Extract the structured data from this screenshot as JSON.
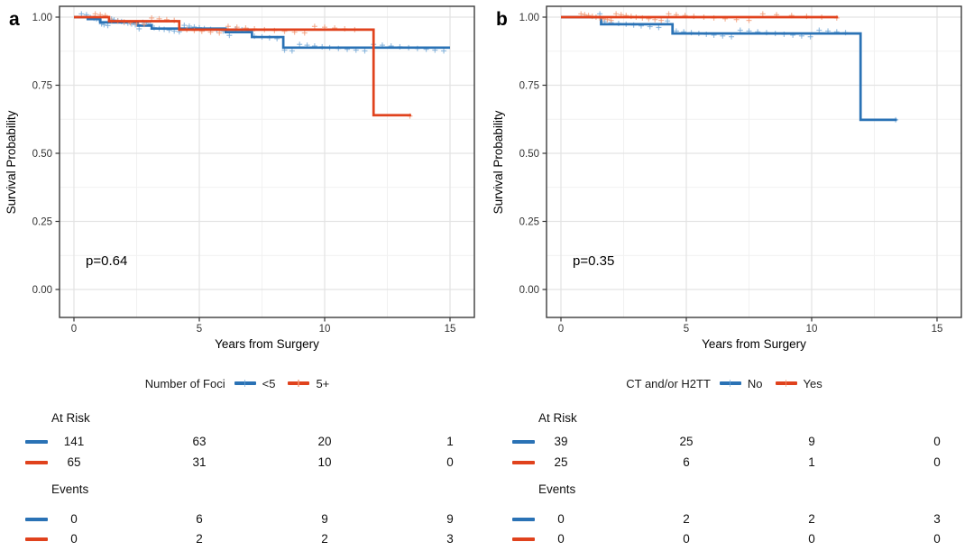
{
  "figure": {
    "background": "#FFFFFF"
  },
  "axes": {
    "x_label": "Years from Surgery",
    "y_label": "Survival Probability",
    "x_tick_labels": [
      "0",
      "5",
      "10",
      "15"
    ],
    "y_tick_labels": [
      "1.00",
      "0.75",
      "0.50",
      "0.25",
      "0.00"
    ]
  },
  "colors": {
    "blue": "#2A72B5",
    "red": "#E0421D",
    "blue_censor": "#74A9D8",
    "red_censor": "#F29B77",
    "grid_major": "#E3E3E3",
    "grid_minor": "#F1F1F1",
    "panel_border": "#3C3C3C"
  },
  "panels": [
    {
      "letter": "a",
      "p_value": "p=0.64",
      "legend": {
        "title": "Number of Foci",
        "entries": [
          {
            "label": "<5",
            "color": "#2A72B5",
            "censor_color": "#74A9D8"
          },
          {
            "label": "5+",
            "color": "#E0421D",
            "censor_color": "#F29B77"
          }
        ]
      },
      "risk_table": {
        "at_risk_label": "At Risk",
        "events_label": "Events",
        "at_risk_rows": [
          {
            "series": "<5",
            "color": "#2A72B5",
            "values": [
              "141",
              "63",
              "20",
              "1"
            ]
          },
          {
            "series": "5+",
            "color": "#E0421D",
            "values": [
              "65",
              "31",
              "10",
              "0"
            ]
          }
        ],
        "events_rows": [
          {
            "series": "<5",
            "color": "#2A72B5",
            "values": [
              "0",
              "6",
              "9",
              "9"
            ]
          },
          {
            "series": "5+",
            "color": "#E0421D",
            "values": [
              "0",
              "2",
              "2",
              "3"
            ]
          }
        ]
      }
    },
    {
      "letter": "b",
      "p_value": "p=0.35",
      "legend": {
        "title": "CT and/or H2TT",
        "entries": [
          {
            "label": "No",
            "color": "#2A72B5",
            "censor_color": "#74A9D8"
          },
          {
            "label": "Yes",
            "color": "#E0421D",
            "censor_color": "#F29B77"
          }
        ]
      },
      "risk_table": {
        "at_risk_label": "At Risk",
        "events_label": "Events",
        "at_risk_rows": [
          {
            "series": "No",
            "color": "#2A72B5",
            "values": [
              "39",
              "25",
              "9",
              "0"
            ]
          },
          {
            "series": "Yes",
            "color": "#E0421D",
            "values": [
              "25",
              "6",
              "1",
              "0"
            ]
          }
        ],
        "events_rows": [
          {
            "series": "No",
            "color": "#2A72B5",
            "values": [
              "0",
              "2",
              "2",
              "3"
            ]
          },
          {
            "series": "Yes",
            "color": "#E0421D",
            "values": [
              "0",
              "0",
              "0",
              "0"
            ]
          }
        ]
      }
    }
  ],
  "chart_data": [
    {
      "type": "line",
      "subtype": "kaplan-meier-step",
      "panel": "a",
      "title": "",
      "xlabel": "Years from Surgery",
      "ylabel": "Survival Probability",
      "xlim": [
        -0.6,
        15.6
      ],
      "ylim": [
        -0.11,
        1.04
      ],
      "x_ticks": [
        0,
        5,
        10,
        15
      ],
      "y_ticks": [
        0.0,
        0.25,
        0.5,
        0.75,
        1.0
      ],
      "grid": true,
      "legend_position": "bottom",
      "p_value_text": "p=0.64",
      "series": [
        {
          "name": "<5",
          "color": "#2A72B5",
          "censor_color": "#74A9D8",
          "start_level": 1.0,
          "drops": [
            [
              0.55,
              0.993
            ],
            [
              1.05,
              0.981
            ],
            [
              2.55,
              0.969
            ],
            [
              3.1,
              0.958
            ],
            [
              6.05,
              0.945
            ],
            [
              7.1,
              0.927
            ],
            [
              8.35,
              0.888
            ]
          ],
          "end_x": 15.0,
          "censor_times": [
            0.3,
            0.5,
            0.65,
            0.8,
            0.9,
            1.0,
            1.1,
            1.2,
            1.35,
            1.5,
            1.6,
            1.75,
            1.9,
            2.0,
            2.15,
            2.3,
            2.45,
            2.6,
            2.75,
            2.9,
            3.05,
            3.2,
            3.4,
            3.6,
            3.8,
            4.0,
            4.2,
            4.4,
            4.6,
            4.8,
            5.0,
            5.2,
            5.45,
            5.7,
            5.95,
            6.2,
            6.45,
            6.7,
            6.95,
            7.2,
            7.5,
            7.8,
            8.1,
            8.4,
            8.7,
            9.0,
            9.3,
            9.6,
            9.9,
            10.2,
            10.55,
            10.9,
            11.25,
            11.6,
            11.95,
            12.3,
            12.65,
            13.0,
            13.35,
            13.7,
            14.05,
            14.4,
            14.75
          ]
        },
        {
          "name": "5+",
          "color": "#E0421D",
          "censor_color": "#F29B77",
          "start_level": 1.0,
          "drops": [
            [
              1.4,
              0.985
            ],
            [
              4.2,
              0.954
            ],
            [
              11.95,
              0.64
            ]
          ],
          "end_x": 13.45,
          "censor_times": [
            0.85,
            1.05,
            1.25,
            1.5,
            1.75,
            2.0,
            2.25,
            2.5,
            2.8,
            3.1,
            3.4,
            3.7,
            4.0,
            4.5,
            4.8,
            5.1,
            5.45,
            5.8,
            6.15,
            6.5,
            6.85,
            7.2,
            7.6,
            8.0,
            8.4,
            8.8,
            9.2,
            9.6,
            10.0,
            10.4,
            10.8,
            11.2,
            13.4
          ]
        }
      ]
    },
    {
      "type": "line",
      "subtype": "kaplan-meier-step",
      "panel": "b",
      "title": "",
      "xlabel": "Years from Surgery",
      "ylabel": "Survival Probability",
      "xlim": [
        -0.6,
        15.6
      ],
      "ylim": [
        -0.11,
        1.04
      ],
      "x_ticks": [
        0,
        5,
        10,
        15
      ],
      "y_ticks": [
        0.0,
        0.25,
        0.5,
        0.75,
        1.0
      ],
      "grid": true,
      "legend_position": "bottom",
      "p_value_text": "p=0.35",
      "series": [
        {
          "name": "No",
          "color": "#2A72B5",
          "censor_color": "#74A9D8",
          "start_level": 1.0,
          "drops": [
            [
              1.6,
              0.974
            ],
            [
              4.45,
              0.94
            ],
            [
              11.95,
              0.623
            ]
          ],
          "end_x": 13.4,
          "censor_times": [
            1.55,
            1.75,
            2.0,
            2.3,
            2.6,
            2.9,
            3.2,
            3.55,
            3.9,
            4.25,
            4.6,
            4.9,
            5.2,
            5.5,
            5.8,
            6.1,
            6.45,
            6.8,
            7.15,
            7.5,
            7.85,
            8.2,
            8.55,
            8.9,
            9.25,
            9.6,
            9.95,
            10.3,
            10.65,
            11.0,
            11.35,
            13.35
          ]
        },
        {
          "name": "Yes",
          "color": "#E0421D",
          "censor_color": "#F29B77",
          "start_level": 1.0,
          "drops": [],
          "end_x": 11.05,
          "censor_times": [
            0.8,
            0.95,
            1.1,
            1.25,
            1.4,
            1.55,
            1.7,
            1.85,
            2.0,
            2.2,
            2.4,
            2.6,
            2.8,
            3.0,
            3.25,
            3.5,
            3.75,
            4.0,
            4.3,
            4.6,
            4.95,
            5.3,
            5.7,
            6.1,
            6.55,
            7.0,
            7.5,
            8.05,
            8.6,
            9.2,
            9.8,
            10.4,
            11.0
          ]
        }
      ]
    }
  ]
}
